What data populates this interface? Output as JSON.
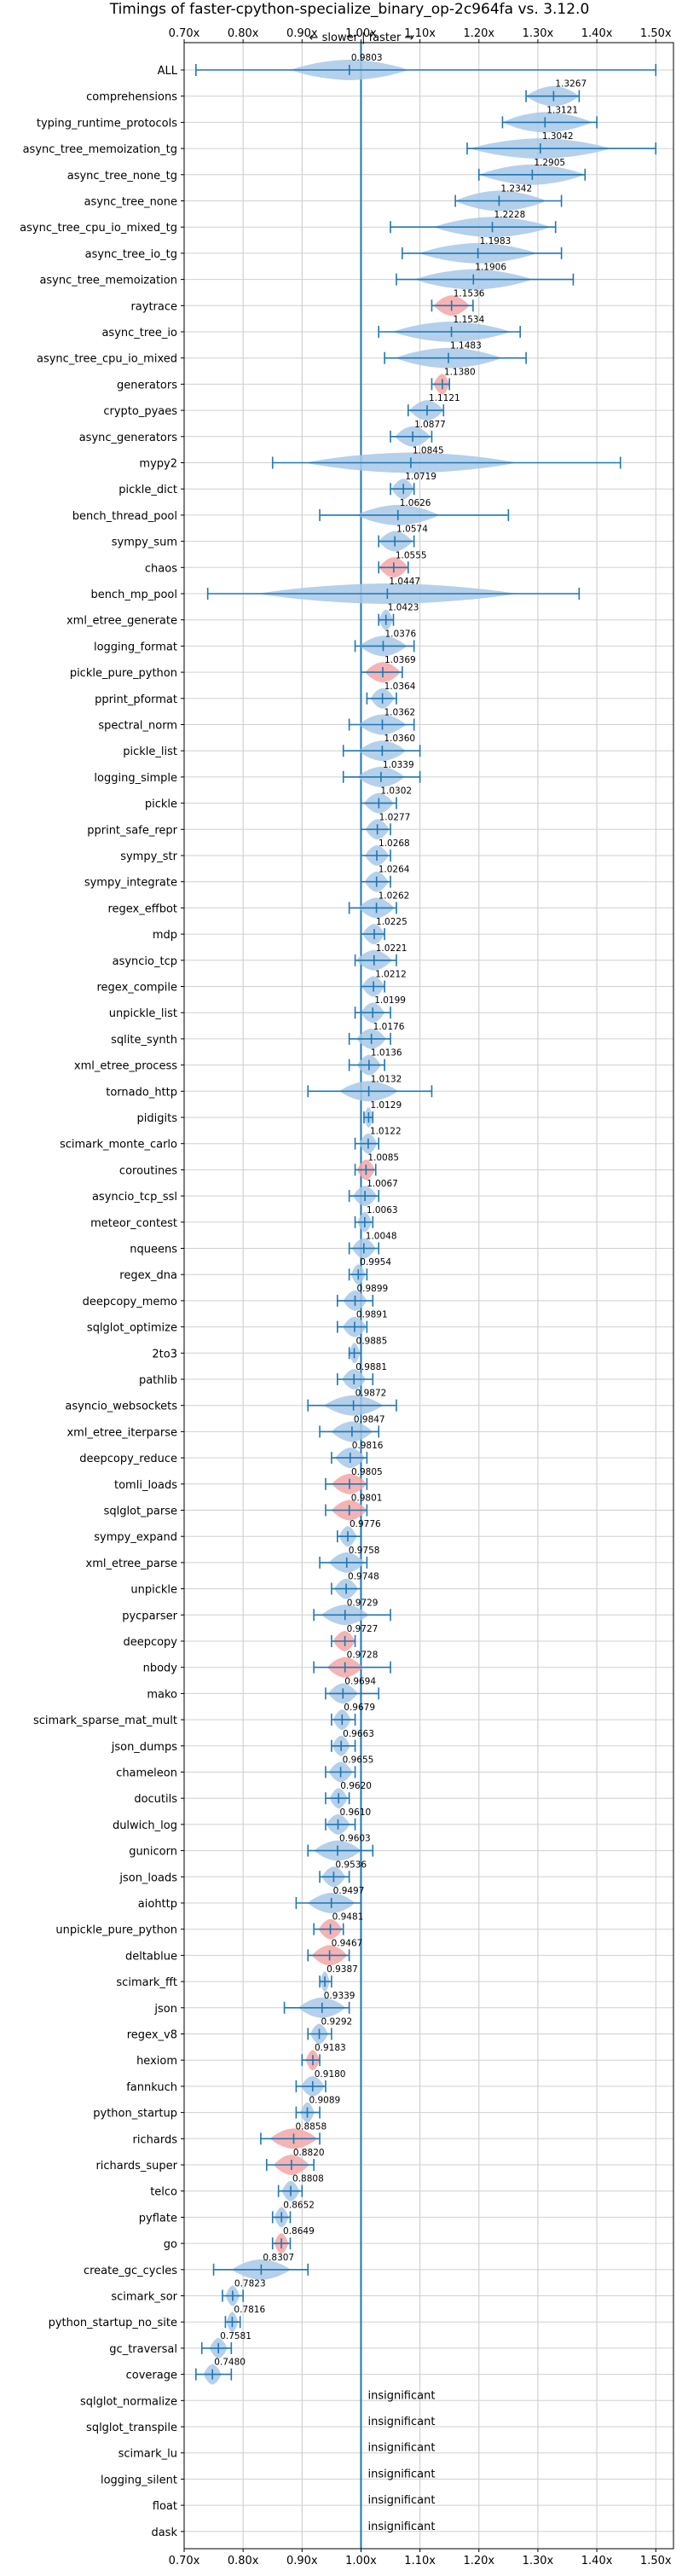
{
  "chart_data": {
    "type": "violin",
    "title": "Timings of faster-cpython-specialize_binary_op-2c964fa vs. 3.12.0",
    "top_annotation": "← slower | faster →",
    "orientation": "horizontal",
    "xlim": [
      0.7,
      1.53
    ],
    "xticks": [
      0.7,
      0.8,
      0.9,
      1.0,
      1.1,
      1.2,
      1.3,
      1.4,
      1.5
    ],
    "xtick_labels": [
      "0.70x",
      "0.80x",
      "0.90x",
      "1.00x",
      "1.10x",
      "1.20x",
      "1.30x",
      "1.40x",
      "1.50x"
    ],
    "reference_line": 1.0,
    "grid": true,
    "colors": {
      "normal": "#a8c8e6",
      "highlight": "#f4a6a6",
      "line": "#1f77b4",
      "reference": "#1f77b4"
    },
    "insignificant_label": "insignificant",
    "benchmarks": [
      {
        "name": "ALL",
        "value": 0.9803,
        "min": 0.72,
        "max": 1.5,
        "spread": 0.1,
        "highlight": false
      },
      {
        "name": "comprehensions",
        "value": 1.3267,
        "min": 1.28,
        "max": 1.37,
        "spread": 0.05,
        "highlight": false
      },
      {
        "name": "typing_runtime_protocols",
        "value": 1.3121,
        "min": 1.24,
        "max": 1.4,
        "spread": 0.08,
        "highlight": false
      },
      {
        "name": "async_tree_memoization_tg",
        "value": 1.3042,
        "min": 1.18,
        "max": 1.5,
        "spread": 0.12,
        "highlight": false
      },
      {
        "name": "async_tree_none_tg",
        "value": 1.2905,
        "min": 1.2,
        "max": 1.38,
        "spread": 0.09,
        "highlight": false
      },
      {
        "name": "async_tree_none",
        "value": 1.2342,
        "min": 1.16,
        "max": 1.34,
        "spread": 0.08,
        "highlight": false
      },
      {
        "name": "async_tree_cpu_io_mixed_tg",
        "value": 1.2228,
        "min": 1.05,
        "max": 1.33,
        "spread": 0.1,
        "highlight": false
      },
      {
        "name": "async_tree_io_tg",
        "value": 1.1983,
        "min": 1.07,
        "max": 1.34,
        "spread": 0.1,
        "highlight": false
      },
      {
        "name": "async_tree_memoization",
        "value": 1.1906,
        "min": 1.06,
        "max": 1.36,
        "spread": 0.1,
        "highlight": false
      },
      {
        "name": "raytrace",
        "value": 1.1536,
        "min": 1.12,
        "max": 1.19,
        "spread": 0.03,
        "highlight": true
      },
      {
        "name": "async_tree_io",
        "value": 1.1534,
        "min": 1.03,
        "max": 1.27,
        "spread": 0.1,
        "highlight": false
      },
      {
        "name": "async_tree_cpu_io_mixed",
        "value": 1.1483,
        "min": 1.04,
        "max": 1.28,
        "spread": 0.09,
        "highlight": false
      },
      {
        "name": "generators",
        "value": 1.138,
        "min": 1.12,
        "max": 1.15,
        "spread": 0.015,
        "highlight": true
      },
      {
        "name": "crypto_pyaes",
        "value": 1.1121,
        "min": 1.08,
        "max": 1.14,
        "spread": 0.03,
        "highlight": false
      },
      {
        "name": "async_generators",
        "value": 1.0877,
        "min": 1.05,
        "max": 1.12,
        "spread": 0.03,
        "highlight": false
      },
      {
        "name": "mypy2",
        "value": 1.0845,
        "min": 0.85,
        "max": 1.44,
        "spread": 0.18,
        "highlight": false
      },
      {
        "name": "pickle_dict",
        "value": 1.0719,
        "min": 1.05,
        "max": 1.09,
        "spread": 0.02,
        "highlight": false
      },
      {
        "name": "bench_thread_pool",
        "value": 1.0626,
        "min": 0.93,
        "max": 1.25,
        "spread": 0.07,
        "highlight": false
      },
      {
        "name": "sympy_sum",
        "value": 1.0574,
        "min": 1.03,
        "max": 1.09,
        "spread": 0.03,
        "highlight": false
      },
      {
        "name": "chaos",
        "value": 1.0555,
        "min": 1.03,
        "max": 1.08,
        "spread": 0.025,
        "highlight": true
      },
      {
        "name": "bench_mp_pool",
        "value": 1.0447,
        "min": 0.74,
        "max": 1.37,
        "spread": 0.22,
        "highlight": false
      },
      {
        "name": "xml_etree_generate",
        "value": 1.0423,
        "min": 1.03,
        "max": 1.055,
        "spread": 0.012,
        "highlight": false
      },
      {
        "name": "logging_format",
        "value": 1.0376,
        "min": 0.99,
        "max": 1.09,
        "spread": 0.04,
        "highlight": false
      },
      {
        "name": "pickle_pure_python",
        "value": 1.0369,
        "min": 1.0,
        "max": 1.07,
        "spread": 0.03,
        "highlight": true
      },
      {
        "name": "pprint_pformat",
        "value": 1.0364,
        "min": 1.01,
        "max": 1.06,
        "spread": 0.02,
        "highlight": false
      },
      {
        "name": "spectral_norm",
        "value": 1.0362,
        "min": 0.98,
        "max": 1.09,
        "spread": 0.04,
        "highlight": false
      },
      {
        "name": "pickle_list",
        "value": 1.036,
        "min": 0.97,
        "max": 1.1,
        "spread": 0.04,
        "highlight": false
      },
      {
        "name": "logging_simple",
        "value": 1.0339,
        "min": 0.97,
        "max": 1.1,
        "spread": 0.04,
        "highlight": false
      },
      {
        "name": "pickle",
        "value": 1.0302,
        "min": 1.0,
        "max": 1.06,
        "spread": 0.025,
        "highlight": false
      },
      {
        "name": "pprint_safe_repr",
        "value": 1.0277,
        "min": 1.0,
        "max": 1.05,
        "spread": 0.02,
        "highlight": false
      },
      {
        "name": "sympy_str",
        "value": 1.0268,
        "min": 1.0,
        "max": 1.05,
        "spread": 0.02,
        "highlight": false
      },
      {
        "name": "sympy_integrate",
        "value": 1.0264,
        "min": 1.0,
        "max": 1.05,
        "spread": 0.02,
        "highlight": false
      },
      {
        "name": "regex_effbot",
        "value": 1.0262,
        "min": 0.98,
        "max": 1.06,
        "spread": 0.03,
        "highlight": false
      },
      {
        "name": "mdp",
        "value": 1.0225,
        "min": 1.0,
        "max": 1.04,
        "spread": 0.02,
        "highlight": false
      },
      {
        "name": "asyncio_tcp",
        "value": 1.0221,
        "min": 0.99,
        "max": 1.06,
        "spread": 0.03,
        "highlight": false
      },
      {
        "name": "regex_compile",
        "value": 1.0212,
        "min": 1.0,
        "max": 1.04,
        "spread": 0.02,
        "highlight": false
      },
      {
        "name": "unpickle_list",
        "value": 1.0199,
        "min": 0.99,
        "max": 1.05,
        "spread": 0.02,
        "highlight": false
      },
      {
        "name": "sqlite_synth",
        "value": 1.0176,
        "min": 0.98,
        "max": 1.05,
        "spread": 0.025,
        "highlight": false
      },
      {
        "name": "xml_etree_process",
        "value": 1.0136,
        "min": 0.98,
        "max": 1.04,
        "spread": 0.02,
        "highlight": false
      },
      {
        "name": "tornado_http",
        "value": 1.0132,
        "min": 0.91,
        "max": 1.12,
        "spread": 0.05,
        "highlight": false
      },
      {
        "name": "pidigits",
        "value": 1.0129,
        "min": 1.005,
        "max": 1.02,
        "spread": 0.008,
        "highlight": false
      },
      {
        "name": "scimark_monte_carlo",
        "value": 1.0122,
        "min": 0.99,
        "max": 1.03,
        "spread": 0.015,
        "highlight": false
      },
      {
        "name": "coroutines",
        "value": 1.0085,
        "min": 0.99,
        "max": 1.025,
        "spread": 0.015,
        "highlight": true
      },
      {
        "name": "asyncio_tcp_ssl",
        "value": 1.0067,
        "min": 0.98,
        "max": 1.03,
        "spread": 0.02,
        "highlight": false
      },
      {
        "name": "meteor_contest",
        "value": 1.0063,
        "min": 0.99,
        "max": 1.02,
        "spread": 0.012,
        "highlight": false
      },
      {
        "name": "nqueens",
        "value": 1.0048,
        "min": 0.98,
        "max": 1.03,
        "spread": 0.02,
        "highlight": false
      },
      {
        "name": "regex_dna",
        "value": 0.9954,
        "min": 0.98,
        "max": 1.01,
        "spread": 0.012,
        "highlight": false
      },
      {
        "name": "deepcopy_memo",
        "value": 0.9899,
        "min": 0.96,
        "max": 1.02,
        "spread": 0.02,
        "highlight": false
      },
      {
        "name": "sqlglot_optimize",
        "value": 0.9891,
        "min": 0.96,
        "max": 1.01,
        "spread": 0.02,
        "highlight": false
      },
      {
        "name": "2to3",
        "value": 0.9885,
        "min": 0.98,
        "max": 1.0,
        "spread": 0.01,
        "highlight": false
      },
      {
        "name": "pathlib",
        "value": 0.9881,
        "min": 0.96,
        "max": 1.02,
        "spread": 0.02,
        "highlight": false
      },
      {
        "name": "asyncio_websockets",
        "value": 0.9872,
        "min": 0.91,
        "max": 1.06,
        "spread": 0.05,
        "highlight": false
      },
      {
        "name": "xml_etree_iterparse",
        "value": 0.9847,
        "min": 0.93,
        "max": 1.03,
        "spread": 0.035,
        "highlight": false
      },
      {
        "name": "deepcopy_reduce",
        "value": 0.9816,
        "min": 0.95,
        "max": 1.01,
        "spread": 0.025,
        "highlight": false
      },
      {
        "name": "tomli_loads",
        "value": 0.9805,
        "min": 0.94,
        "max": 1.01,
        "spread": 0.03,
        "highlight": true
      },
      {
        "name": "sqlglot_parse",
        "value": 0.9801,
        "min": 0.94,
        "max": 1.01,
        "spread": 0.03,
        "highlight": true
      },
      {
        "name": "sympy_expand",
        "value": 0.9776,
        "min": 0.96,
        "max": 1.0,
        "spread": 0.015,
        "highlight": false
      },
      {
        "name": "xml_etree_parse",
        "value": 0.9758,
        "min": 0.93,
        "max": 1.01,
        "spread": 0.03,
        "highlight": false
      },
      {
        "name": "unpickle",
        "value": 0.9748,
        "min": 0.95,
        "max": 1.0,
        "spread": 0.02,
        "highlight": false
      },
      {
        "name": "pycparser",
        "value": 0.9729,
        "min": 0.92,
        "max": 1.05,
        "spread": 0.04,
        "highlight": false
      },
      {
        "name": "deepcopy",
        "value": 0.9727,
        "min": 0.95,
        "max": 0.99,
        "spread": 0.02,
        "highlight": true
      },
      {
        "name": "nbody",
        "value": 0.9728,
        "min": 0.92,
        "max": 1.05,
        "spread": 0.03,
        "highlight": true
      },
      {
        "name": "mako",
        "value": 0.9694,
        "min": 0.94,
        "max": 1.03,
        "spread": 0.025,
        "highlight": false
      },
      {
        "name": "scimark_sparse_mat_mult",
        "value": 0.9679,
        "min": 0.95,
        "max": 0.99,
        "spread": 0.015,
        "highlight": false
      },
      {
        "name": "json_dumps",
        "value": 0.9663,
        "min": 0.95,
        "max": 0.99,
        "spread": 0.015,
        "highlight": false
      },
      {
        "name": "chameleon",
        "value": 0.9655,
        "min": 0.94,
        "max": 0.99,
        "spread": 0.02,
        "highlight": false
      },
      {
        "name": "docutils",
        "value": 0.962,
        "min": 0.94,
        "max": 0.98,
        "spread": 0.015,
        "highlight": false
      },
      {
        "name": "dulwich_log",
        "value": 0.961,
        "min": 0.94,
        "max": 0.99,
        "spread": 0.02,
        "highlight": false
      },
      {
        "name": "gunicorn",
        "value": 0.9603,
        "min": 0.91,
        "max": 1.02,
        "spread": 0.04,
        "highlight": false
      },
      {
        "name": "json_loads",
        "value": 0.9536,
        "min": 0.93,
        "max": 0.98,
        "spread": 0.02,
        "highlight": false
      },
      {
        "name": "aiohttp",
        "value": 0.9497,
        "min": 0.89,
        "max": 1.0,
        "spread": 0.04,
        "highlight": false
      },
      {
        "name": "unpickle_pure_python",
        "value": 0.9481,
        "min": 0.92,
        "max": 0.97,
        "spread": 0.02,
        "highlight": true
      },
      {
        "name": "deltablue",
        "value": 0.9467,
        "min": 0.91,
        "max": 0.98,
        "spread": 0.03,
        "highlight": true
      },
      {
        "name": "scimark_fft",
        "value": 0.9387,
        "min": 0.93,
        "max": 0.95,
        "spread": 0.008,
        "highlight": false
      },
      {
        "name": "json",
        "value": 0.9339,
        "min": 0.87,
        "max": 0.98,
        "spread": 0.04,
        "highlight": false
      },
      {
        "name": "regex_v8",
        "value": 0.9292,
        "min": 0.91,
        "max": 0.95,
        "spread": 0.015,
        "highlight": false
      },
      {
        "name": "hexiom",
        "value": 0.9183,
        "min": 0.9,
        "max": 0.93,
        "spread": 0.012,
        "highlight": true
      },
      {
        "name": "fannkuch",
        "value": 0.918,
        "min": 0.89,
        "max": 0.94,
        "spread": 0.02,
        "highlight": false
      },
      {
        "name": "python_startup",
        "value": 0.9089,
        "min": 0.89,
        "max": 0.93,
        "spread": 0.012,
        "highlight": false
      },
      {
        "name": "richards",
        "value": 0.8858,
        "min": 0.83,
        "max": 0.93,
        "spread": 0.04,
        "highlight": true
      },
      {
        "name": "richards_super",
        "value": 0.882,
        "min": 0.84,
        "max": 0.92,
        "spread": 0.03,
        "highlight": true
      },
      {
        "name": "telco",
        "value": 0.8808,
        "min": 0.86,
        "max": 0.9,
        "spread": 0.015,
        "highlight": false
      },
      {
        "name": "pyflate",
        "value": 0.8652,
        "min": 0.85,
        "max": 0.88,
        "spread": 0.012,
        "highlight": false
      },
      {
        "name": "go",
        "value": 0.8649,
        "min": 0.85,
        "max": 0.88,
        "spread": 0.012,
        "highlight": true
      },
      {
        "name": "create_gc_cycles",
        "value": 0.8307,
        "min": 0.75,
        "max": 0.91,
        "spread": 0.05,
        "highlight": false
      },
      {
        "name": "scimark_sor",
        "value": 0.7823,
        "min": 0.765,
        "max": 0.8,
        "spread": 0.012,
        "highlight": false
      },
      {
        "name": "python_startup_no_site",
        "value": 0.7816,
        "min": 0.77,
        "max": 0.795,
        "spread": 0.01,
        "highlight": false
      },
      {
        "name": "gc_traversal",
        "value": 0.7581,
        "min": 0.73,
        "max": 0.78,
        "spread": 0.015,
        "highlight": false
      },
      {
        "name": "coverage",
        "value": 0.748,
        "min": 0.72,
        "max": 0.78,
        "spread": 0.015,
        "highlight": false
      },
      {
        "name": "sqlglot_normalize",
        "insignificant": true
      },
      {
        "name": "sqlglot_transpile",
        "insignificant": true
      },
      {
        "name": "scimark_lu",
        "insignificant": true
      },
      {
        "name": "logging_silent",
        "insignificant": true
      },
      {
        "name": "float",
        "insignificant": true
      },
      {
        "name": "dask",
        "insignificant": true
      }
    ]
  }
}
